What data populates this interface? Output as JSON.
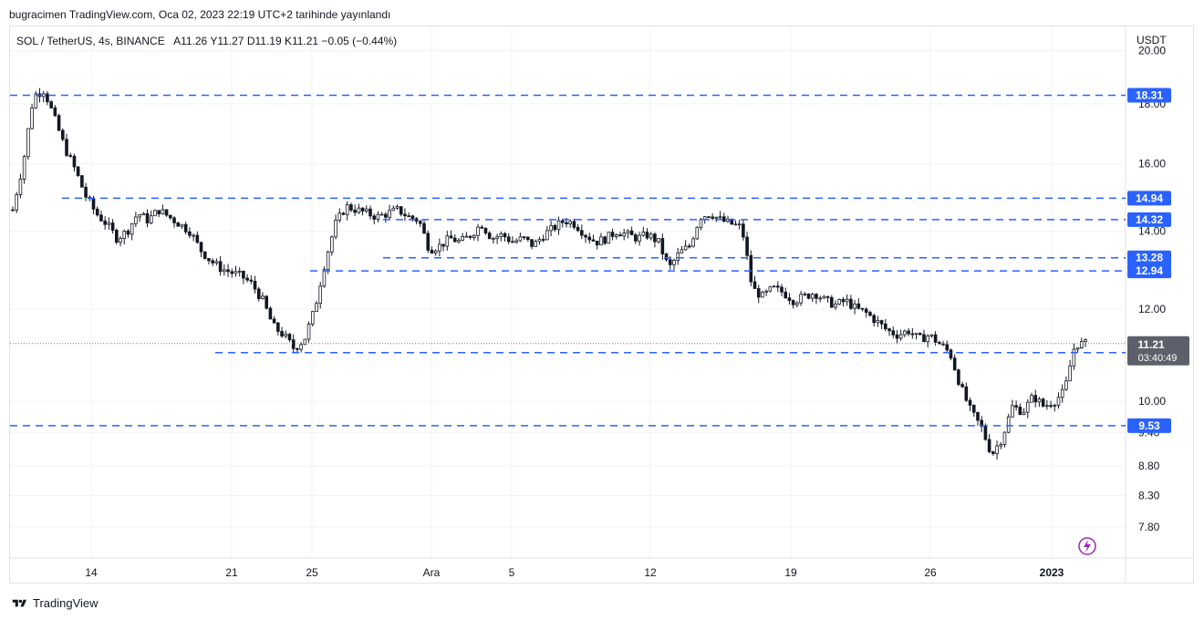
{
  "header": {
    "published_by": "bugracimen TradingView.com, Oca 02, 2023 22:19 UTC+2 tarihinde yayınlandı"
  },
  "legend": {
    "symbol": "SOL / TetherUS, 4s, BINANCE",
    "ohlc": "A11.26  Y11.27  D11.19  K11.21  −0.05 (−0.44%)"
  },
  "footer": {
    "brand": "TradingView"
  },
  "colors": {
    "candle": "#131722",
    "level_line": "#2962ff",
    "price_badge": "#5d606b",
    "alert_icon": "#9c27b0"
  },
  "chart_data": {
    "type": "candlestick",
    "currency_label": "USDT",
    "y_scale": "log",
    "ylim": [
      7.5,
      20.0
    ],
    "yticks": [
      "20.00",
      "18.00",
      "16.00",
      "14.00",
      "12.00",
      "10.00",
      "9.40",
      "8.80",
      "8.30",
      "7.80"
    ],
    "xticks": [
      "14",
      "21",
      "25",
      "Ara",
      "5",
      "12",
      "19",
      "26",
      "2023"
    ],
    "grid": true,
    "last_price": "11.21",
    "countdown": "03:40:49",
    "levels": [
      {
        "label": "18.31",
        "value": 18.31
      },
      {
        "label": "14.94",
        "value": 14.94
      },
      {
        "label": "14.32",
        "value": 14.32
      },
      {
        "label": "13.28",
        "value": 13.28
      },
      {
        "label": "12.94",
        "value": 12.94
      },
      {
        "label": "11.01",
        "value": 11.01
      },
      {
        "label": "9.53",
        "value": 9.53
      }
    ],
    "approx_path": [
      14.6,
      16.0,
      18.3,
      18.5,
      17.5,
      16.5,
      15.8,
      15.0,
      14.5,
      14.2,
      13.8,
      14.0,
      14.5,
      14.3,
      14.6,
      14.4,
      14.2,
      14.0,
      13.5,
      13.2,
      13.0,
      12.9,
      12.8,
      12.6,
      12.2,
      11.6,
      11.4,
      11.1,
      11.3,
      12.0,
      13.2,
      14.2,
      14.7,
      14.6,
      14.5,
      14.4,
      14.5,
      14.6,
      14.4,
      14.3,
      13.5,
      13.6,
      13.8,
      13.7,
      13.9,
      14.2,
      13.8,
      13.9,
      13.7,
      13.8,
      13.6,
      13.9,
      14.1,
      14.3,
      14.2,
      13.9,
      13.7,
      13.8,
      14.0,
      13.9,
      13.8,
      13.9,
      13.7,
      13.0,
      13.4,
      13.6,
      14.4,
      14.5,
      14.3,
      14.2,
      14.1,
      12.5,
      12.3,
      12.5,
      12.4,
      12.2,
      12.3,
      12.4,
      12.2,
      12.1,
      12.2,
      12.0,
      11.9,
      11.7,
      11.5,
      11.4,
      11.5,
      11.3,
      11.4,
      11.2,
      11.0,
      10.3,
      9.8,
      9.5,
      9.0,
      9.3,
      9.9,
      9.8,
      10.1,
      9.9,
      10.0,
      10.2,
      11.2,
      11.2
    ]
  }
}
